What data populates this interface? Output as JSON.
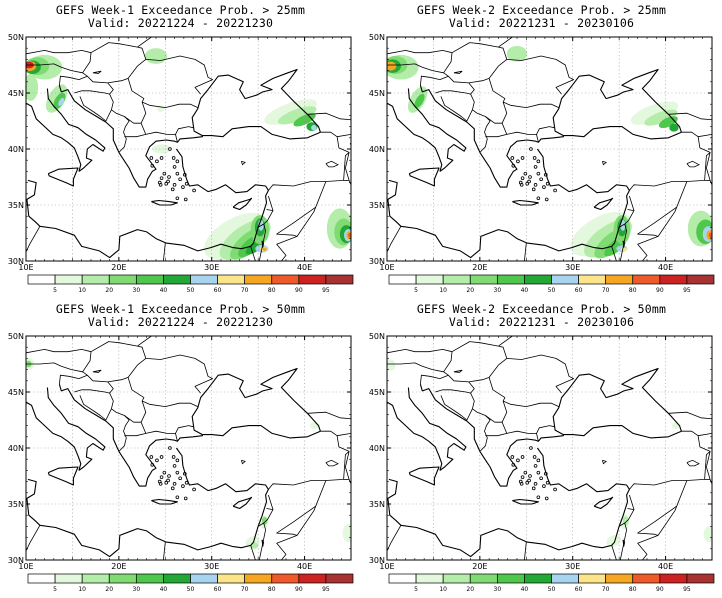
{
  "colors": {
    "green_lightest": "#e3f8dc",
    "green_light": "#b4ecaa",
    "green_mid1": "#7fdb72",
    "green_mid2": "#4fc64c",
    "green_dark": "#24a835",
    "blue": "#a8d4f0",
    "yellow": "#fbe48a",
    "orange": "#f5a623",
    "red_orange": "#ee5a2a",
    "red": "#cc2222",
    "dark_red": "#a83232"
  },
  "panels": [
    {
      "title": "GEFS Week-1 Exceedance Prob. > 25mm",
      "valid": "Valid: 20221224 - 20221230"
    },
    {
      "title": "GEFS Week-2 Exceedance Prob. > 25mm",
      "valid": "Valid: 20221231 - 20230106"
    },
    {
      "title": "GEFS Week-1 Exceedance Prob. > 50mm",
      "valid": "Valid: 20221224 - 20221230"
    },
    {
      "title": "GEFS Week-2 Exceedance Prob. > 50mm",
      "valid": "Valid: 20221231 - 20230106"
    }
  ],
  "axes": {
    "lat_labels": [
      "50N",
      "45N",
      "40N",
      "35N",
      "30N"
    ],
    "lon_labels": [
      "10E",
      "20E",
      "30E",
      "40E"
    ]
  },
  "colorbar": {
    "labels": [
      "5",
      "10",
      "20",
      "30",
      "40",
      "50",
      "60",
      "70",
      "80",
      "90",
      "95"
    ]
  }
}
